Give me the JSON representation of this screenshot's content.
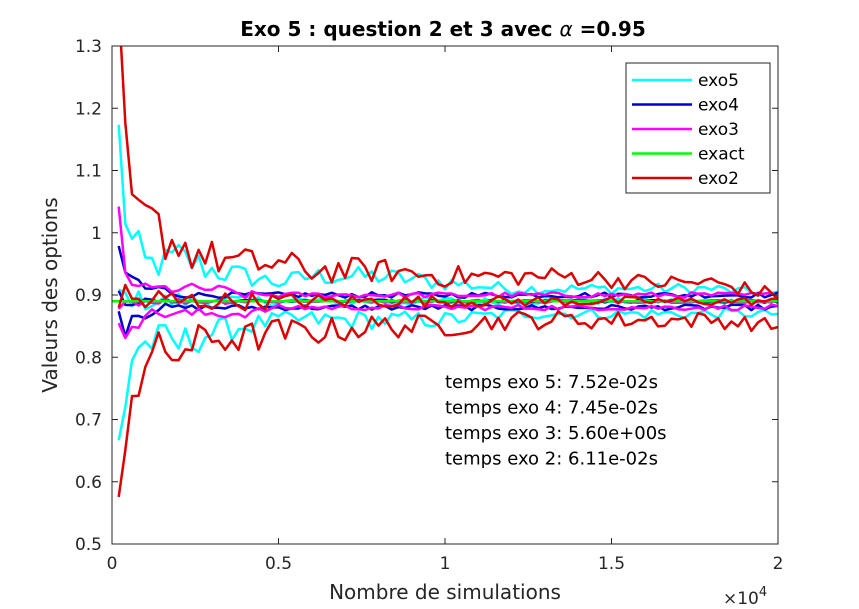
{
  "chart_data": {
    "type": "line",
    "title_prefix": "Exo 5 : question 2 et 3 avec ",
    "title_symbol": "α",
    "title_suffix": " =0.95",
    "xlabel": "Nombre de simulations",
    "ylabel": "Valeurs des options",
    "x_multiplier": "×10",
    "x_multiplier_exp": "4",
    "xlim": [
      0,
      20000
    ],
    "ylim": [
      0.5,
      1.3
    ],
    "x_ticks": [
      0,
      5000,
      10000,
      15000,
      20000
    ],
    "x_tick_labels": [
      "0",
      "0.5",
      "1",
      "1.5",
      "2"
    ],
    "y_ticks": [
      0.5,
      0.6,
      0.7,
      0.8,
      0.9,
      1.0,
      1.1,
      1.2,
      1.3
    ],
    "y_tick_labels": [
      "0.5",
      "0.6",
      "0.7",
      "0.8",
      "0.9",
      "1",
      "1.1",
      "1.2",
      "1.3"
    ],
    "grid": false,
    "legend_position": "top-right",
    "series": [
      {
        "name": "exo5",
        "color": "#00ffff",
        "x": [
          200,
          400,
          600,
          800,
          1000,
          1500,
          2000,
          3000,
          4000,
          5000,
          6000,
          8000,
          10000,
          12000,
          14000,
          16000,
          18000,
          20000
        ],
        "upper": [
          1.14,
          1.04,
          0.98,
          0.97,
          0.95,
          0.95,
          0.96,
          0.94,
          0.93,
          0.92,
          0.93,
          0.93,
          0.92,
          0.91,
          0.91,
          0.91,
          0.91,
          0.9
        ],
        "mid": [
          0.9,
          0.89,
          0.9,
          0.89,
          0.89,
          0.89,
          0.89,
          0.89,
          0.89,
          0.89,
          0.89,
          0.89,
          0.89,
          0.89,
          0.89,
          0.89,
          0.89,
          0.89
        ],
        "lower": [
          0.65,
          0.74,
          0.8,
          0.82,
          0.82,
          0.83,
          0.82,
          0.84,
          0.85,
          0.86,
          0.86,
          0.86,
          0.86,
          0.87,
          0.87,
          0.87,
          0.87,
          0.87
        ]
      },
      {
        "name": "exo4",
        "color": "#0000cc",
        "x": [
          200,
          400,
          600,
          800,
          1000,
          1500,
          2000,
          3000,
          4000,
          5000,
          6000,
          8000,
          10000,
          12000,
          14000,
          16000,
          18000,
          20000
        ],
        "upper": [
          0.96,
          0.93,
          0.93,
          0.92,
          0.91,
          0.91,
          0.9,
          0.9,
          0.9,
          0.9,
          0.9,
          0.9,
          0.9,
          0.9,
          0.9,
          0.9,
          0.9,
          0.9
        ],
        "mid": [
          0.9,
          0.89,
          0.89,
          0.89,
          0.89,
          0.89,
          0.89,
          0.89,
          0.89,
          0.89,
          0.89,
          0.89,
          0.89,
          0.89,
          0.89,
          0.89,
          0.89,
          0.89
        ],
        "lower": [
          0.87,
          0.85,
          0.87,
          0.87,
          0.87,
          0.88,
          0.88,
          0.88,
          0.88,
          0.88,
          0.88,
          0.88,
          0.88,
          0.88,
          0.88,
          0.88,
          0.88,
          0.88
        ]
      },
      {
        "name": "exo3",
        "color": "#ff00ff",
        "x": [
          200,
          400,
          600,
          800,
          1000,
          1500,
          2000,
          3000,
          4000,
          5000,
          6000,
          8000,
          10000,
          12000,
          14000,
          16000,
          18000,
          20000
        ],
        "upper": [
          1.01,
          0.93,
          0.92,
          0.92,
          0.91,
          0.91,
          0.91,
          0.91,
          0.9,
          0.9,
          0.9,
          0.9,
          0.9,
          0.9,
          0.9,
          0.9,
          0.9,
          0.9
        ],
        "mid": [
          0.9,
          0.89,
          0.89,
          0.89,
          0.89,
          0.89,
          0.89,
          0.89,
          0.89,
          0.89,
          0.89,
          0.89,
          0.89,
          0.89,
          0.89,
          0.89,
          0.89,
          0.89
        ],
        "lower": [
          0.82,
          0.84,
          0.86,
          0.86,
          0.87,
          0.87,
          0.87,
          0.87,
          0.87,
          0.88,
          0.88,
          0.88,
          0.88,
          0.88,
          0.88,
          0.88,
          0.88,
          0.88
        ]
      },
      {
        "name": "exact",
        "color": "#00ff00",
        "x": [
          0,
          20000
        ],
        "upper": [
          0.89,
          0.89
        ],
        "mid": [
          0.89,
          0.89
        ],
        "lower": [
          0.89,
          0.89
        ]
      },
      {
        "name": "exo2",
        "color": "#dd0000",
        "x": [
          200,
          400,
          600,
          800,
          1000,
          1500,
          2000,
          3000,
          4000,
          5000,
          6000,
          8000,
          10000,
          12000,
          14000,
          16000,
          18000,
          20000
        ],
        "upper": [
          1.23,
          1.1,
          1.05,
          1.01,
          1.02,
          1.0,
          0.98,
          0.96,
          0.95,
          0.95,
          0.94,
          0.94,
          0.93,
          0.93,
          0.93,
          0.92,
          0.92,
          0.9
        ],
        "mid": [
          0.9,
          0.89,
          0.89,
          0.89,
          0.89,
          0.89,
          0.89,
          0.89,
          0.89,
          0.89,
          0.89,
          0.89,
          0.89,
          0.89,
          0.89,
          0.89,
          0.89,
          0.89
        ],
        "lower": [
          0.56,
          0.72,
          0.75,
          0.77,
          0.79,
          0.8,
          0.81,
          0.83,
          0.83,
          0.84,
          0.84,
          0.85,
          0.85,
          0.86,
          0.86,
          0.86,
          0.86,
          0.85
        ]
      }
    ],
    "annotations": [
      "temps exo 5: 7.52e-02s",
      "temps exo 4: 7.45e-02s",
      "temps exo 3: 5.60e+00s",
      "temps exo 2: 6.11e-02s"
    ]
  }
}
